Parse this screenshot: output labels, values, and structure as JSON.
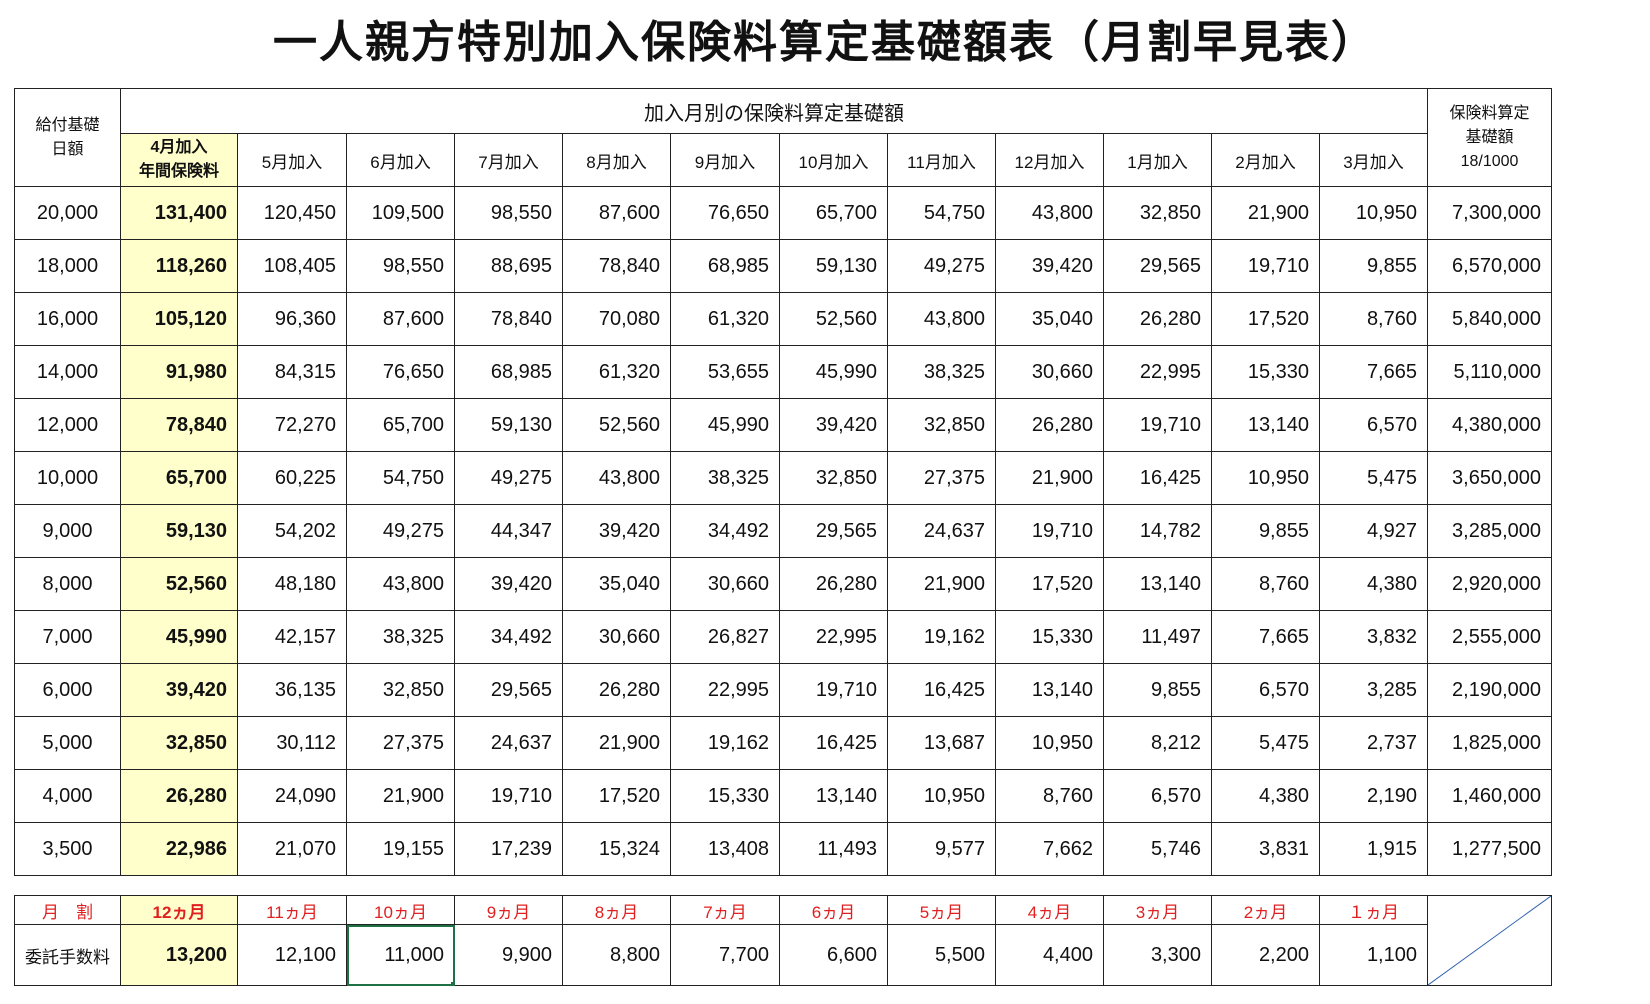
{
  "title": "一人親方特別加入保険料算定基礎額表（月割早見表）",
  "header": {
    "col0": "給付基礎\n日額",
    "group": "加入月別の保険料算定基礎額",
    "last": "保険料算定\n基礎額\n18/1000",
    "months": [
      "4月加入\n年間保険料",
      "5月加入",
      "6月加入",
      "7月加入",
      "8月加入",
      "9月加入",
      "10月加入",
      "11月加入",
      "12月加入",
      "1月加入",
      "2月加入",
      "3月加入"
    ]
  },
  "rows": [
    [
      "20,000",
      "131,400",
      "120,450",
      "109,500",
      "98,550",
      "87,600",
      "76,650",
      "65,700",
      "54,750",
      "43,800",
      "32,850",
      "21,900",
      "10,950",
      "7,300,000"
    ],
    [
      "18,000",
      "118,260",
      "108,405",
      "98,550",
      "88,695",
      "78,840",
      "68,985",
      "59,130",
      "49,275",
      "39,420",
      "29,565",
      "19,710",
      "9,855",
      "6,570,000"
    ],
    [
      "16,000",
      "105,120",
      "96,360",
      "87,600",
      "78,840",
      "70,080",
      "61,320",
      "52,560",
      "43,800",
      "35,040",
      "26,280",
      "17,520",
      "8,760",
      "5,840,000"
    ],
    [
      "14,000",
      "91,980",
      "84,315",
      "76,650",
      "68,985",
      "61,320",
      "53,655",
      "45,990",
      "38,325",
      "30,660",
      "22,995",
      "15,330",
      "7,665",
      "5,110,000"
    ],
    [
      "12,000",
      "78,840",
      "72,270",
      "65,700",
      "59,130",
      "52,560",
      "45,990",
      "39,420",
      "32,850",
      "26,280",
      "19,710",
      "13,140",
      "6,570",
      "4,380,000"
    ],
    [
      "10,000",
      "65,700",
      "60,225",
      "54,750",
      "49,275",
      "43,800",
      "38,325",
      "32,850",
      "27,375",
      "21,900",
      "16,425",
      "10,950",
      "5,475",
      "3,650,000"
    ],
    [
      "9,000",
      "59,130",
      "54,202",
      "49,275",
      "44,347",
      "39,420",
      "34,492",
      "29,565",
      "24,637",
      "19,710",
      "14,782",
      "9,855",
      "4,927",
      "3,285,000"
    ],
    [
      "8,000",
      "52,560",
      "48,180",
      "43,800",
      "39,420",
      "35,040",
      "30,660",
      "26,280",
      "21,900",
      "17,520",
      "13,140",
      "8,760",
      "4,380",
      "2,920,000"
    ],
    [
      "7,000",
      "45,990",
      "42,157",
      "38,325",
      "34,492",
      "30,660",
      "26,827",
      "22,995",
      "19,162",
      "15,330",
      "11,497",
      "7,665",
      "3,832",
      "2,555,000"
    ],
    [
      "6,000",
      "39,420",
      "36,135",
      "32,850",
      "29,565",
      "26,280",
      "22,995",
      "19,710",
      "16,425",
      "13,140",
      "9,855",
      "6,570",
      "3,285",
      "2,190,000"
    ],
    [
      "5,000",
      "32,850",
      "30,112",
      "27,375",
      "24,637",
      "21,900",
      "19,162",
      "16,425",
      "13,687",
      "10,950",
      "8,212",
      "5,475",
      "2,737",
      "1,825,000"
    ],
    [
      "4,000",
      "26,280",
      "24,090",
      "21,900",
      "19,710",
      "17,520",
      "15,330",
      "13,140",
      "10,950",
      "8,760",
      "6,570",
      "4,380",
      "2,190",
      "1,460,000"
    ],
    [
      "3,500",
      "22,986",
      "21,070",
      "19,155",
      "17,239",
      "15,324",
      "13,408",
      "11,493",
      "9,577",
      "7,662",
      "5,746",
      "3,831",
      "1,915",
      "1,277,500"
    ]
  ],
  "fee": {
    "row1_label": "月　割",
    "months": [
      "12ヵ月",
      "11ヵ月",
      "10ヵ月",
      "9ヵ月",
      "8ヵ月",
      "7ヵ月",
      "6ヵ月",
      "5ヵ月",
      "4ヵ月",
      "3ヵ月",
      "2ヵ月",
      "１ヵ月"
    ],
    "row2_label": "委託手数料",
    "values": [
      "13,200",
      "12,100",
      "11,000",
      "9,900",
      "8,800",
      "7,700",
      "6,600",
      "5,500",
      "4,400",
      "3,300",
      "2,200",
      "1,100"
    ]
  },
  "colors": {
    "highlight": "#ffffcc",
    "red_text": "#e02020",
    "selection": "#1e7145",
    "slash": "#2f5fb0"
  }
}
